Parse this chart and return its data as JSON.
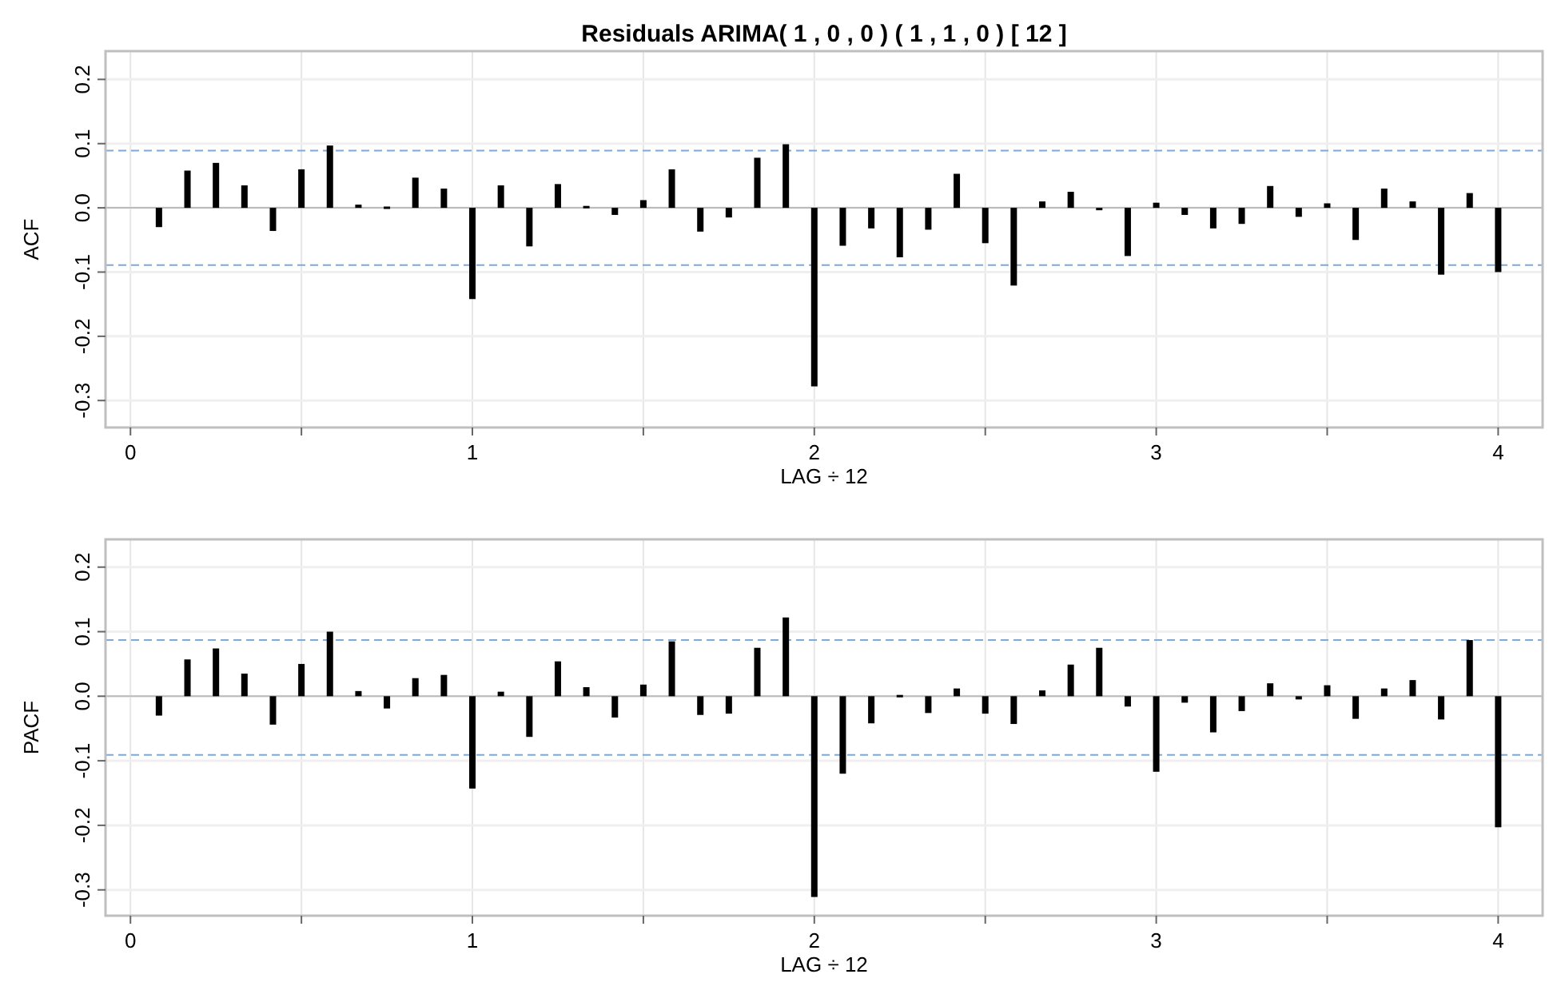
{
  "chart_data": [
    {
      "type": "bar",
      "title": "Residuals ARIMA( 1 , 0 , 0 ) ( 1 , 1 , 0 ) [ 12 ]",
      "xlabel": "LAG ÷ 12",
      "ylabel": "ACF",
      "color": "#000000",
      "x": [
        0.0833,
        0.1667,
        0.25,
        0.3333,
        0.4167,
        0.5,
        0.5833,
        0.6667,
        0.75,
        0.8333,
        0.9167,
        1,
        1.0833,
        1.1667,
        1.25,
        1.3333,
        1.4167,
        1.5,
        1.5833,
        1.6667,
        1.75,
        1.8333,
        1.9167,
        2,
        2.0833,
        2.1667,
        2.25,
        2.3333,
        2.4167,
        2.5,
        2.5833,
        2.6667,
        2.75,
        2.8333,
        2.9167,
        3,
        3.0833,
        3.1667,
        3.25,
        3.3333,
        3.4167,
        3.5,
        3.5833,
        3.6667,
        3.75,
        3.8333,
        3.9167,
        4
      ],
      "values": [
        -0.03,
        0.058,
        0.07,
        0.035,
        -0.036,
        0.06,
        0.097,
        0.005,
        0.002,
        0.047,
        0.03,
        -0.142,
        0.035,
        -0.06,
        0.037,
        0.003,
        -0.011,
        0.012,
        0.06,
        -0.037,
        -0.015,
        0.078,
        0.099,
        -0.278,
        -0.059,
        -0.032,
        -0.077,
        -0.034,
        0.053,
        -0.055,
        -0.121,
        0.01,
        0.025,
        -0.003,
        -0.075,
        0.008,
        -0.011,
        -0.032,
        -0.025,
        0.034,
        -0.014,
        0.007,
        -0.05,
        0.03,
        0.01,
        -0.104,
        0.023,
        -0.1
      ],
      "xlim": [
        -0.073,
        4.13
      ],
      "ylim": [
        -0.342,
        0.244
      ],
      "xticks": [
        0,
        {
          "value": 0.5,
          "label": null
        },
        1,
        {
          "value": 1.5,
          "label": null
        },
        2,
        {
          "value": 2.5,
          "label": null
        },
        3,
        {
          "value": 3.5,
          "label": null
        },
        4
      ],
      "yticks": [
        -0.3,
        -0.2,
        -0.1,
        {
          "value": 0,
          "label": "0.0"
        },
        0.1,
        0.2
      ],
      "grid": true,
      "ref_lines": [
        {
          "axis": "y",
          "value": 0.089,
          "color": "#7fa9d8",
          "line_style": "dashed"
        },
        {
          "axis": "y",
          "value": -0.089,
          "color": "#7fa9d8",
          "line_style": "dashed"
        }
      ]
    },
    {
      "type": "bar",
      "xlabel": "LAG ÷ 12",
      "ylabel": "PACF",
      "color": "#000000",
      "x": [
        0.0833,
        0.1667,
        0.25,
        0.3333,
        0.4167,
        0.5,
        0.5833,
        0.6667,
        0.75,
        0.8333,
        0.9167,
        1,
        1.0833,
        1.1667,
        1.25,
        1.3333,
        1.4167,
        1.5,
        1.5833,
        1.6667,
        1.75,
        1.8333,
        1.9167,
        2,
        2.0833,
        2.1667,
        2.25,
        2.3333,
        2.4167,
        2.5,
        2.5833,
        2.6667,
        2.75,
        2.8333,
        2.9167,
        3,
        3.0833,
        3.1667,
        3.25,
        3.3333,
        3.4167,
        3.5,
        3.5833,
        3.6667,
        3.75,
        3.8333,
        3.9167,
        4
      ],
      "values": [
        -0.03,
        0.057,
        0.074,
        0.035,
        -0.044,
        0.05,
        0.1,
        0.008,
        -0.019,
        0.028,
        0.033,
        -0.143,
        0.007,
        -0.063,
        0.054,
        0.014,
        -0.033,
        0.018,
        0.085,
        -0.029,
        -0.027,
        0.075,
        0.122,
        -0.311,
        -0.12,
        -0.042,
        0.002,
        -0.026,
        0.012,
        -0.027,
        -0.043,
        0.009,
        0.049,
        0.075,
        -0.016,
        -0.117,
        -0.01,
        -0.056,
        -0.023,
        0.02,
        -0.005,
        0.017,
        -0.035,
        0.012,
        0.025,
        -0.036,
        0.087,
        -0.203
      ],
      "xlim": [
        -0.073,
        4.13
      ],
      "ylim": [
        -0.34,
        0.243
      ],
      "xticks": [
        0,
        {
          "value": 0.5,
          "label": null
        },
        1,
        {
          "value": 1.5,
          "label": null
        },
        2,
        {
          "value": 2.5,
          "label": null
        },
        3,
        {
          "value": 3.5,
          "label": null
        },
        4
      ],
      "yticks": [
        -0.3,
        -0.2,
        -0.1,
        {
          "value": 0,
          "label": "0.0"
        },
        0.1,
        0.2
      ],
      "grid": true,
      "ref_lines": [
        {
          "axis": "y",
          "value": 0.087,
          "color": "#7fa9d8",
          "line_style": "dashed"
        },
        {
          "axis": "y",
          "value": -0.091,
          "color": "#7fa9d8",
          "line_style": "dashed"
        }
      ]
    }
  ]
}
